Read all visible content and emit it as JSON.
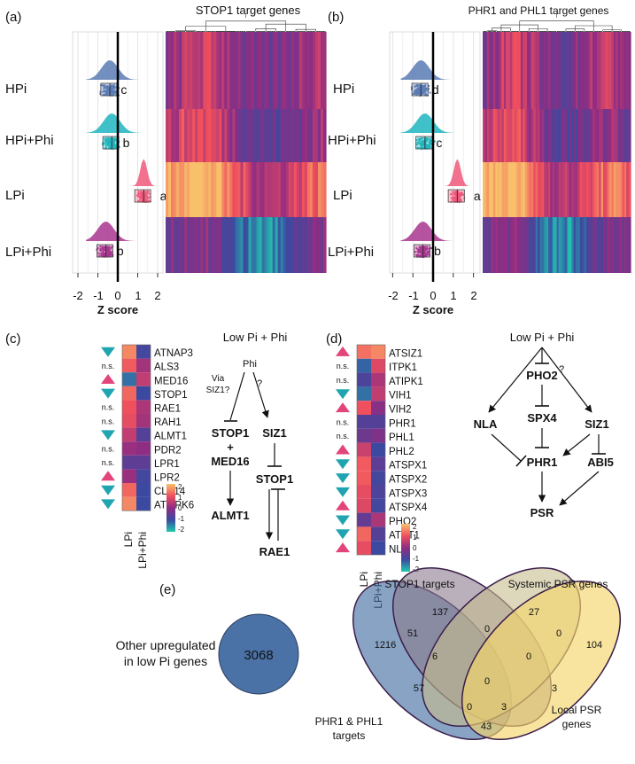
{
  "panels": {
    "a": {
      "letter": "(a)",
      "title": "STOP1 target genes"
    },
    "b": {
      "letter": "(b)",
      "title": "PHR1 and PHL1 target genes"
    },
    "c": {
      "letter": "(c)"
    },
    "d": {
      "letter": "(d)"
    },
    "e": {
      "letter": "(e)"
    }
  },
  "conditions": [
    "HPi",
    "HPi+Phi",
    "LPi",
    "LPi+Phi"
  ],
  "z_axis": {
    "label": "Z score",
    "ticks": [
      "-2",
      "-1",
      "0",
      "1",
      "2"
    ]
  },
  "stats": {
    "a": {
      "letters": [
        "c",
        "b",
        "a",
        "b"
      ],
      "means": [
        -0.4,
        -0.3,
        1.3,
        -0.6
      ]
    },
    "b": {
      "letters": [
        "d",
        "c",
        "a",
        "b"
      ],
      "means": [
        -0.6,
        -0.4,
        1.2,
        -0.5
      ]
    }
  },
  "colors": {
    "HPi": "#5a7bb5",
    "HPi+Phi": "#1fb5be",
    "LPi": "#f0587a",
    "LPi+Phi": "#a8358f",
    "up_marker": "#e3457a",
    "down_marker": "#20a5b0"
  },
  "heatmap_c": {
    "genes": [
      "ATNAP3",
      "ALS3",
      "MED16",
      "STOP1",
      "RAE1",
      "RAH1",
      "ALMT1",
      "PDR2",
      "LPR1",
      "LPR2",
      "CLE14",
      "ATMPK6"
    ],
    "marks": [
      "down",
      "n.s.",
      "up",
      "down",
      "n.s.",
      "n.s.",
      "down",
      "n.s.",
      "n.s.",
      "up",
      "down",
      "down"
    ],
    "lpi": [
      1.5,
      1.1,
      -1.3,
      1.2,
      1.0,
      0.9,
      0.5,
      0.1,
      -0.6,
      0.1,
      1.2,
      1.5
    ],
    "lpiphi": [
      -0.9,
      0.2,
      0.5,
      -1.0,
      0.3,
      0.2,
      -0.7,
      0.0,
      -0.6,
      -0.9,
      -1.0,
      -1.0
    ],
    "columns": [
      "LPi",
      "LPi+Phi"
    ],
    "scale": [
      "2",
      "1",
      "0",
      "-1",
      "-2"
    ]
  },
  "heatmap_d": {
    "genes": [
      "ATSIZ1",
      "ITPK1",
      "ATIPK1",
      "VIH1",
      "VIH2",
      "PHR1",
      "PHL1",
      "PHL2",
      "ATSPX1",
      "ATSPX2",
      "ATSPX3",
      "ATSPX4",
      "PHO2",
      "ATPT1",
      "NLA"
    ],
    "marks": [
      "up",
      "n.s.",
      "n.s.",
      "down",
      "up",
      "n.s.",
      "n.s.",
      "up",
      "down",
      "down",
      "down",
      "up",
      "down",
      "down",
      "up"
    ],
    "lpi": [
      1.3,
      -1.2,
      -0.8,
      -1.3,
      1.0,
      -0.7,
      -0.4,
      0.6,
      1.1,
      1.1,
      0.9,
      0.8,
      -0.5,
      1.2,
      0.9
    ],
    "lpiphi": [
      1.5,
      0.8,
      0.3,
      0.5,
      -0.1,
      -0.7,
      -0.2,
      -1.0,
      -0.6,
      -0.9,
      -0.8,
      -0.9,
      0.3,
      -0.7,
      -1.0
    ],
    "columns": [
      "LPi",
      "LPi+Phi"
    ],
    "scale": [
      "2",
      "1",
      "0",
      "-1",
      "-2"
    ]
  },
  "model_c": {
    "title": "Low Pi + Phi",
    "phi": "Phi",
    "via_line1": "Via",
    "via_line2": "SIZ1?",
    "question": "?",
    "stop1": "STOP1",
    "plus": "+",
    "med16": "MED16",
    "siz1": "SIZ1",
    "stop1_b": "STOP1",
    "almt1": "ALMT1",
    "rae1": "RAE1"
  },
  "model_d": {
    "title": "Low Pi + Phi",
    "question": "?",
    "pho2": "PHO2",
    "nla": "NLA",
    "spx4": "SPX4",
    "siz1": "SIZ1",
    "phr1": "PHR1",
    "abi5": "ABI5",
    "psr": "PSR"
  },
  "venn": {
    "other_line1": "Other upregulated",
    "other_line2": "in low Pi  genes",
    "other_value": "3068",
    "labels": {
      "stop1": "STOP1 targets",
      "systemic": "Systemic PSR genes",
      "phr_line1": "PHR1 & PHL1",
      "phr_line2": "targets",
      "local_line1": "Local PSR",
      "local_line2": "genes"
    },
    "values": {
      "phr_only": "1216",
      "stop1_only": "137",
      "systemic_only": "27",
      "local_only": "104",
      "phr_stop1": "51",
      "stop1_systemic": "0",
      "systemic_local": "0",
      "phr_stop1_systemic": "6",
      "stop1_systemic_local": "0",
      "phr_local": "43",
      "stop1_local": "3",
      "phr_systemic": "0",
      "phr_stop1_local": "57",
      "phr_systemic_local": "3",
      "center": "0"
    },
    "colors": {
      "other": "#4a72a6",
      "phr": "#3f6aa0",
      "stop1": "#8b7b8e",
      "systemic": "#c7bd8e",
      "local": "#f4d56b"
    }
  }
}
